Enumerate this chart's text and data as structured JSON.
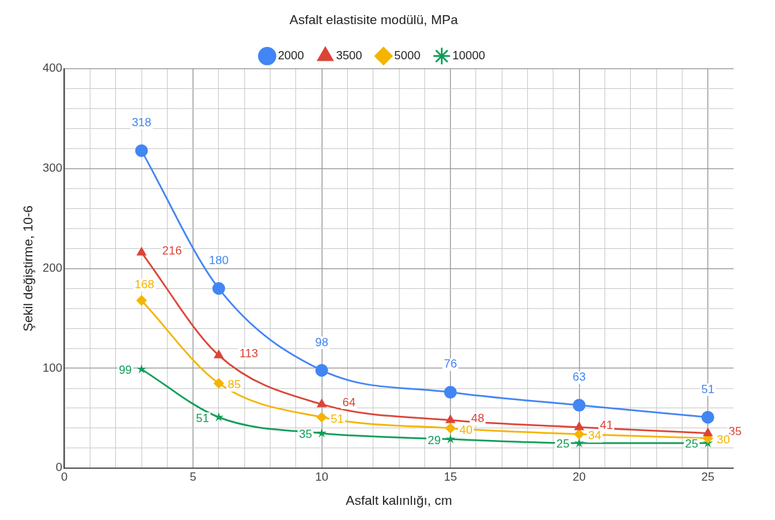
{
  "chart_data": {
    "type": "line",
    "legend_title": "Asfalt elastisite modülü, MPa",
    "xlabel": "Asfalt kalınlığı, cm",
    "ylabel": "Şekil değiştirme, 10-6",
    "x": [
      3,
      6,
      10,
      15,
      20,
      25
    ],
    "series": [
      {
        "name": "2000",
        "color": "#4285f4",
        "marker": "circle",
        "values": [
          318,
          180,
          98,
          76,
          63,
          51
        ]
      },
      {
        "name": "3500",
        "color": "#db4437",
        "marker": "triangle",
        "values": [
          216,
          113,
          64,
          48,
          41,
          35
        ]
      },
      {
        "name": "5000",
        "color": "#f4b400",
        "marker": "diamond",
        "values": [
          168,
          85,
          51,
          40,
          34,
          30
        ]
      },
      {
        "name": "10000",
        "color": "#0f9d58",
        "marker": "star",
        "values": [
          99,
          51,
          35,
          29,
          25,
          25
        ]
      }
    ],
    "xlim": [
      0,
      26
    ],
    "xticks": [
      0,
      {
        "value": 1,
        "label": null
      },
      {
        "value": 2,
        "label": null
      },
      {
        "value": 3,
        "label": null
      },
      {
        "value": 4,
        "label": null
      },
      5,
      {
        "value": 6,
        "label": null
      },
      {
        "value": 7,
        "label": null
      },
      {
        "value": 8,
        "label": null
      },
      {
        "value": 9,
        "label": null
      },
      10,
      {
        "value": 11,
        "label": null
      },
      {
        "value": 12,
        "label": null
      },
      {
        "value": 13,
        "label": null
      },
      {
        "value": 14,
        "label": null
      },
      15,
      {
        "value": 16,
        "label": null
      },
      {
        "value": 17,
        "label": null
      },
      {
        "value": 18,
        "label": null
      },
      {
        "value": 19,
        "label": null
      },
      20,
      {
        "value": 21,
        "label": null
      },
      {
        "value": 22,
        "label": null
      },
      {
        "value": 23,
        "label": null
      },
      {
        "value": 24,
        "label": null
      },
      25
    ],
    "ylim": [
      0,
      400
    ],
    "yticks": [
      0,
      {
        "value": 20,
        "label": null
      },
      {
        "value": 40,
        "label": null
      },
      {
        "value": 60,
        "label": null
      },
      {
        "value": 80,
        "label": null
      },
      100,
      {
        "value": 120,
        "label": null
      },
      {
        "value": 140,
        "label": null
      },
      {
        "value": 160,
        "label": null
      },
      {
        "value": 180,
        "label": null
      },
      200,
      {
        "value": 220,
        "label": null
      },
      {
        "value": 240,
        "label": null
      },
      {
        "value": 260,
        "label": null
      },
      {
        "value": 280,
        "label": null
      },
      300,
      {
        "value": 320,
        "label": null
      },
      {
        "value": 340,
        "label": null
      },
      {
        "value": 360,
        "label": null
      },
      {
        "value": 380,
        "label": null
      },
      400
    ],
    "grid": true,
    "legend": "top",
    "data_labels": true
  }
}
